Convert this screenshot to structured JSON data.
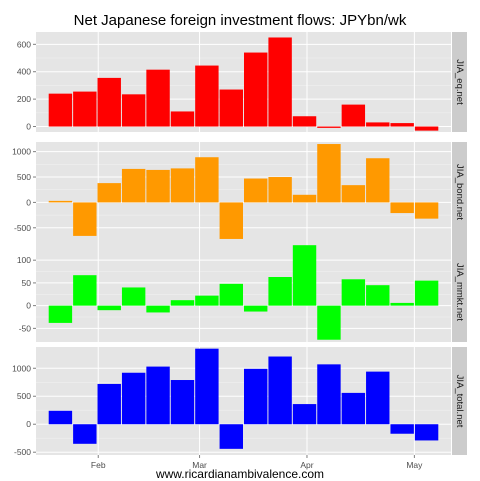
{
  "chart_data": {
    "type": "bar",
    "title": "Net Japanese foreign investment flows: JPYbn/wk",
    "xlabel": "",
    "ylabel": "",
    "x_tick_labels": [
      "Feb",
      "Mar",
      "Apr",
      "May"
    ],
    "weeks": 17,
    "x_tick_week_index": [
      2.55,
      6.7,
      11.1,
      15.5
    ],
    "grid": true,
    "legend": "none",
    "caption": "www.ricardianambivalence.com",
    "panels": [
      {
        "name": "JIA_eq.net",
        "color": "#ff0000",
        "ylim": [
          -40,
          690
        ],
        "yticks": [
          0,
          200,
          400,
          600
        ],
        "values": [
          240,
          255,
          355,
          235,
          415,
          110,
          445,
          270,
          540,
          650,
          75,
          -10,
          160,
          30,
          25,
          -30
        ]
      },
      {
        "name": "JIA_bond.net",
        "color": "#ff9900",
        "ylim": [
          -780,
          1190
        ],
        "yticks": [
          -500,
          0,
          500,
          1000
        ],
        "values": [
          30,
          -660,
          380,
          660,
          640,
          670,
          890,
          -720,
          470,
          500,
          150,
          1150,
          340,
          870,
          -210,
          -320
        ]
      },
      {
        "name": "JIA_mmkt.net",
        "color": "#00ff00",
        "ylim": [
          -80,
          140
        ],
        "yticks": [
          -50,
          0,
          50,
          100
        ],
        "values": [
          -38,
          67,
          -10,
          40,
          -15,
          12,
          22,
          48,
          -13,
          63,
          133,
          -75,
          58,
          45,
          6,
          55
        ]
      },
      {
        "name": "JIA_total.net",
        "color": "#0000ff",
        "ylim": [
          -550,
          1380
        ],
        "yticks": [
          -500,
          0,
          500,
          1000
        ],
        "values": [
          240,
          -350,
          720,
          920,
          1030,
          790,
          1350,
          -440,
          990,
          1210,
          360,
          1070,
          560,
          940,
          -170,
          -290
        ]
      }
    ]
  }
}
